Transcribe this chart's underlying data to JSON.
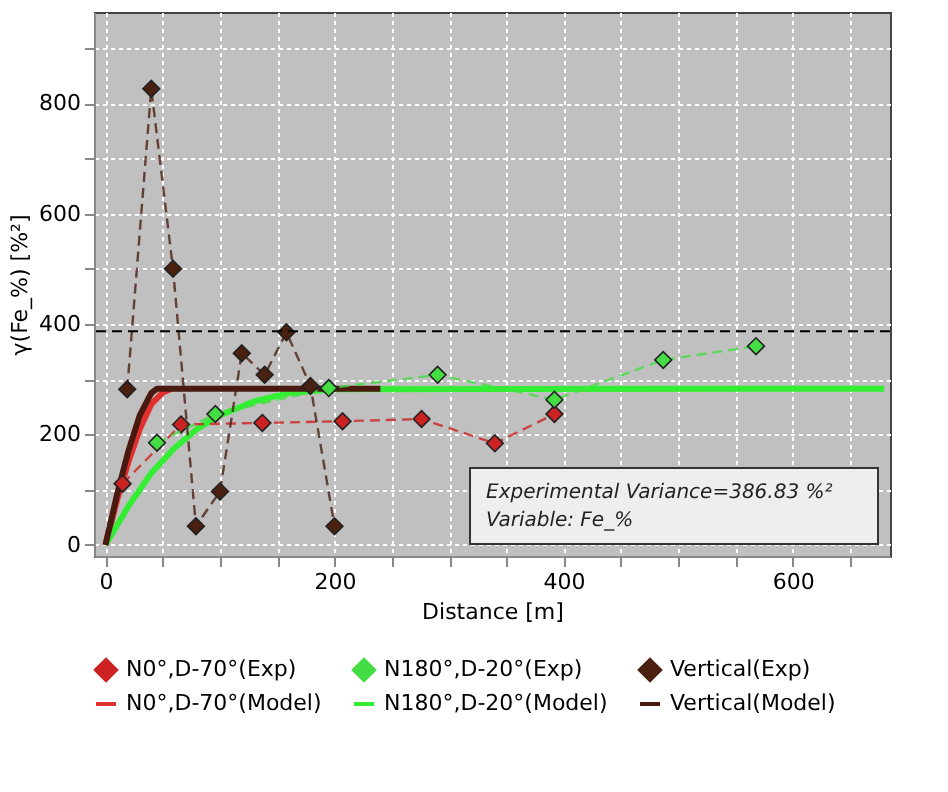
{
  "chart_data": {
    "type": "line",
    "xlabel": "Distance [m]",
    "ylabel": "γ(Fe_%) [%²]",
    "xlim": [
      -10,
      685
    ],
    "ylim": [
      -20,
      965
    ],
    "xticks": [
      0,
      {
        "value": 50,
        "label": null
      },
      {
        "value": 100,
        "label": null
      },
      {
        "value": 150,
        "label": null
      },
      200,
      {
        "value": 250,
        "label": null
      },
      {
        "value": 300,
        "label": null
      },
      {
        "value": 350,
        "label": null
      },
      400,
      {
        "value": 450,
        "label": null
      },
      {
        "value": 500,
        "label": null
      },
      {
        "value": 550,
        "label": null
      },
      600,
      {
        "value": 650,
        "label": null
      }
    ],
    "yticks": [
      0,
      {
        "value": 100,
        "label": null
      },
      200,
      {
        "value": 300,
        "label": null
      },
      400,
      {
        "value": 500,
        "label": null
      },
      600,
      {
        "value": 700,
        "label": null
      },
      800,
      {
        "value": 900,
        "label": null
      }
    ],
    "grid": true,
    "legend": "bottom",
    "series": [
      {
        "name": "N0°,D-70°(Exp)",
        "marker": "diamond",
        "line_style": "dashed",
        "color": "#cc2222",
        "x": [
          15,
          66,
          137,
          207,
          276,
          340,
          392
        ],
        "values": [
          111,
          218,
          221,
          224,
          228,
          184,
          237
        ]
      },
      {
        "name": "N180°,D-20°(Exp)",
        "marker": "diamond",
        "line_style": "dashed",
        "color": "#44dd44",
        "x": [
          45,
          96,
          195,
          290,
          392,
          487,
          568
        ],
        "values": [
          185,
          237,
          284,
          308,
          263,
          335,
          360
        ]
      },
      {
        "name": "Vertical(Exp)",
        "marker": "diamond",
        "line_style": "dashed",
        "color": "#4a2010",
        "x": [
          19,
          40,
          59,
          79,
          100,
          119,
          139,
          158,
          179,
          200
        ],
        "values": [
          282,
          826,
          500,
          34,
          97,
          347,
          308,
          385,
          288,
          34
        ]
      },
      {
        "name": "N0°,D-70°(Model)",
        "marker": "none",
        "line_style": "solid",
        "color": "#e03030",
        "x": [
          0,
          10,
          20,
          30,
          40,
          50,
          58
        ],
        "values": [
          0,
          80,
          150,
          210,
          255,
          276,
          283
        ]
      },
      {
        "name": "N180°,D-20°(Model)",
        "marker": "none",
        "line_style": "solid",
        "color": "#33ee33",
        "x": [
          0,
          20,
          40,
          60,
          80,
          100,
          130,
          160,
          200,
          680
        ],
        "values": [
          0,
          70,
          130,
          175,
          210,
          235,
          260,
          275,
          282,
          283
        ]
      },
      {
        "name": "Vertical(Model)",
        "marker": "none",
        "line_style": "solid",
        "color": "#4a1a10",
        "x": [
          0,
          10,
          20,
          30,
          40,
          45,
          240
        ],
        "values": [
          0,
          90,
          170,
          235,
          275,
          283,
          283
        ]
      }
    ],
    "ref_lines": [
      {
        "axis": "y",
        "value": 386.83,
        "color": "#000000",
        "line_style": "dashed"
      }
    ],
    "annotations": [
      "Experimental Variance=386.83 %²",
      "Variable: Fe_%"
    ]
  }
}
